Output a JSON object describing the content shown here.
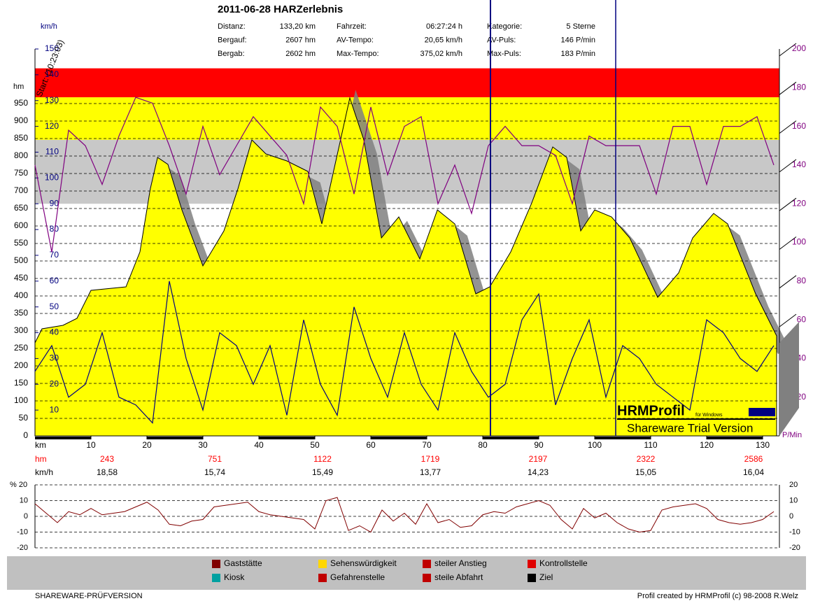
{
  "header": {
    "title": "2011-06-28 HARZerlebnis",
    "stats": [
      {
        "label": "Distanz:",
        "value": "133,20 km"
      },
      {
        "label": "Bergauf:",
        "value": "2607 hm"
      },
      {
        "label": "Bergab:",
        "value": "2602 hm"
      },
      {
        "label": "Fahrzeit:",
        "value": "06:27:24 h"
      },
      {
        "label": "AV-Tempo:",
        "value": "20,65 km/h"
      },
      {
        "label": "Max-Tempo:",
        "value": "375,02 km/h"
      },
      {
        "label": "Kategorie:",
        "value": "5 Sterne"
      },
      {
        "label": "AV-Puls:",
        "value": "146 P/min"
      },
      {
        "label": "Max-Puls:",
        "value": "183 P/min"
      }
    ]
  },
  "chart_data": [
    {
      "type": "line",
      "xlabel": "km",
      "ylabel": "hm",
      "y2label": "P/Min",
      "y3label": "km/h",
      "annotation": "Start: (10:23:03)",
      "xlim": [
        0,
        133
      ],
      "xticks": [
        10,
        20,
        30,
        40,
        50,
        60,
        70,
        80,
        90,
        100,
        110,
        120,
        130
      ],
      "ylim": [
        0,
        1106
      ],
      "yticks": [
        0,
        50,
        100,
        150,
        200,
        250,
        300,
        350,
        400,
        450,
        500,
        550,
        600,
        650,
        700,
        750,
        800,
        850,
        900,
        950
      ],
      "y2lim": [
        0,
        200
      ],
      "y2ticks": [
        20,
        40,
        60,
        80,
        100,
        120,
        140,
        160,
        180,
        200
      ],
      "y3lim": [
        0,
        150
      ],
      "y3ticks": [
        10,
        20,
        30,
        40,
        50,
        60,
        70,
        80,
        90,
        100,
        110,
        120,
        130,
        140,
        150
      ],
      "grid": true,
      "zones": [
        {
          "range": [
            175,
            190
          ],
          "color": "#ff0000"
        },
        {
          "range": [
            153,
            175
          ],
          "color": "#ffff00"
        },
        {
          "range": [
            120,
            153
          ],
          "color": "#c8c8c8"
        }
      ],
      "series": [
        {
          "color": "#ffff00",
          "axis": "y",
          "x": [
            0,
            1.25,
            5,
            7.5,
            10,
            16.25,
            18.75,
            20.6,
            21.9,
            23.75,
            26.25,
            30,
            33.75,
            36.25,
            38.75,
            41.25,
            45,
            48.75,
            51.25,
            53.75,
            56.25,
            58.75,
            61.9,
            65,
            68.75,
            71.9,
            75,
            78.75,
            81.25,
            85,
            88.75,
            92.5,
            95,
            97.5,
            100,
            103,
            106.25,
            111.25,
            115,
            117.5,
            121.25,
            123.75,
            128.75,
            132.5
          ],
          "values": [
            266,
            306,
            316,
            336,
            416,
            426,
            526,
            706,
            796,
            776,
            646,
            486,
            586,
            706,
            846,
            806,
            786,
            756,
            606,
            786,
            966,
            846,
            566,
            626,
            506,
            646,
            606,
            406,
            426,
            526,
            666,
            826,
            796,
            586,
            646,
            626,
            566,
            396,
            466,
            566,
            636,
            606,
            406,
            286
          ]
        },
        {
          "color": "#800080",
          "axis": "y2",
          "x": [
            0,
            3,
            6,
            9,
            12,
            15,
            18,
            21,
            24,
            27,
            30,
            33,
            36,
            39,
            42,
            45,
            48,
            51,
            54,
            57,
            60,
            63,
            66,
            69,
            72,
            75,
            78,
            81,
            84,
            87,
            90,
            93,
            96,
            99,
            102,
            105,
            108,
            111,
            114,
            117,
            120,
            123,
            126,
            129,
            132
          ],
          "values": [
            140,
            95,
            158,
            150,
            130,
            155,
            175,
            172,
            150,
            125,
            160,
            135,
            150,
            165,
            155,
            145,
            120,
            170,
            160,
            125,
            170,
            135,
            160,
            165,
            120,
            140,
            115,
            150,
            160,
            150,
            150,
            145,
            120,
            155,
            150,
            150,
            150,
            125,
            160,
            160,
            130,
            160,
            160,
            165,
            140
          ]
        },
        {
          "color": "#000080",
          "axis": "y3",
          "x": [
            0,
            3,
            6,
            9,
            12,
            15,
            18,
            21,
            24,
            27,
            30,
            33,
            36,
            39,
            42,
            45,
            48,
            51,
            54,
            57,
            60,
            63,
            66,
            69,
            72,
            75,
            78,
            81,
            84,
            87,
            90,
            93,
            96,
            99,
            102,
            105,
            108,
            111,
            114,
            117,
            120,
            123,
            126,
            129,
            132
          ],
          "values": [
            25,
            35,
            15,
            20,
            40,
            15,
            12,
            5,
            60,
            30,
            10,
            40,
            35,
            20,
            35,
            8,
            45,
            20,
            8,
            50,
            30,
            15,
            40,
            20,
            10,
            40,
            25,
            15,
            20,
            45,
            55,
            12,
            30,
            45,
            15,
            35,
            30,
            20,
            15,
            10,
            45,
            40,
            30,
            25,
            35
          ]
        }
      ]
    },
    {
      "type": "line",
      "ylabel": "% 20",
      "xlim": [
        0,
        133
      ],
      "ylim": [
        -20,
        20
      ],
      "yticks": [
        -20,
        -10,
        0,
        10,
        20
      ],
      "grid": true,
      "series": [
        {
          "color": "#800000",
          "x": [
            0,
            2,
            4,
            6,
            8,
            10,
            12,
            14,
            16,
            18,
            20,
            22,
            24,
            26,
            28,
            30,
            32,
            34,
            36,
            38,
            40,
            42,
            44,
            46,
            48,
            50,
            52,
            54,
            56,
            58,
            60,
            62,
            64,
            66,
            68,
            70,
            72,
            74,
            76,
            78,
            80,
            82,
            84,
            86,
            88,
            90,
            92,
            94,
            96,
            98,
            100,
            102,
            104,
            106,
            108,
            110,
            112,
            114,
            116,
            118,
            120,
            122,
            124,
            126,
            128,
            130,
            132
          ],
          "values": [
            8,
            2,
            -4,
            3,
            1,
            5,
            1,
            2,
            3,
            6,
            9,
            4,
            -5,
            -6,
            -3,
            -2,
            6,
            7,
            8,
            9,
            3,
            1,
            0,
            -1,
            -2,
            -8,
            10,
            12,
            -9,
            -6,
            -10,
            4,
            -3,
            2,
            -5,
            8,
            -4,
            -2,
            -7,
            -6,
            1,
            3,
            2,
            6,
            8,
            10,
            7,
            -2,
            -8,
            5,
            -1,
            2,
            -4,
            -8,
            -10,
            -9,
            4,
            6,
            7,
            8,
            5,
            -2,
            -4,
            -5,
            -4,
            -2,
            3
          ]
        }
      ]
    }
  ],
  "segments": {
    "hm_label": "hm",
    "kmh_label": "km/h",
    "hm": [
      "243",
      "751",
      "1122",
      "1719",
      "2197",
      "2322",
      "2586"
    ],
    "kmh": [
      "18,58",
      "15,74",
      "15,49",
      "13,77",
      "14,23",
      "15,05",
      "16,04"
    ]
  },
  "watermark": {
    "name": "HRMProfil",
    "sub": "für Windows",
    "note": "Shareware Trial  Version"
  },
  "legend": [
    "Gaststätte",
    "Kiosk",
    "Sehenswürdigkeit",
    "Gefahrenstelle",
    "steiler Anstieg",
    "steile Abfahrt",
    "Kontrollstelle",
    "Ziel"
  ],
  "footer": {
    "left": "SHAREWARE-PRÜFVERSION",
    "right": "Profil created by HRMProfil (c) 98-2008 R.Welz"
  }
}
